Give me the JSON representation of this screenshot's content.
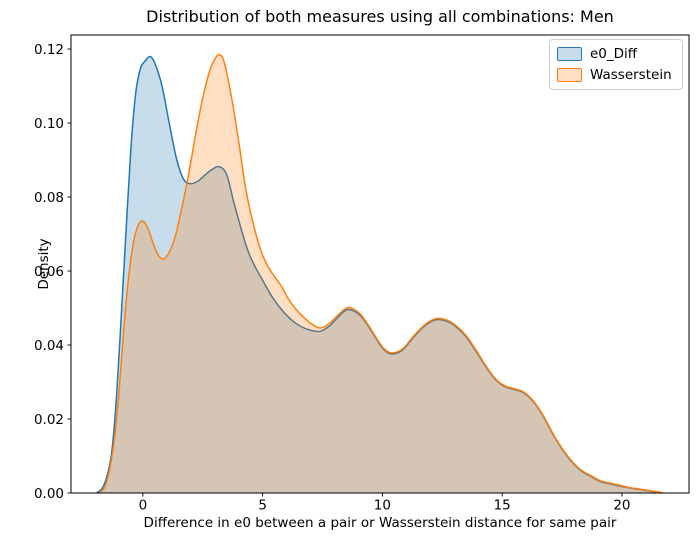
{
  "figure": {
    "title": "Distribution of both measures using all combinations: Men",
    "xlabel": "Difference in e0 between a pair or Wasserstein distance for same pair",
    "ylabel": "Density"
  },
  "legend": {
    "position": "upper right",
    "items": [
      {
        "label": "e0_Diff",
        "line_color": "#1f77b4",
        "fill_color": "rgba(31,119,180,0.25)"
      },
      {
        "label": "Wasserstein",
        "line_color": "#ff7f0e",
        "fill_color": "rgba(255,127,14,0.25)"
      }
    ]
  },
  "chart_data": {
    "type": "area",
    "subtype": "kde-density",
    "title": "Distribution of both measures using all combinations: Men",
    "xlabel": "Difference in e0 between a pair or Wasserstein distance for same pair",
    "ylabel": "Density",
    "xlim": [
      -3.0,
      22.8
    ],
    "ylim": [
      0,
      0.1238
    ],
    "grid": false,
    "legend_position": "upper right",
    "xticks": [
      0,
      5,
      10,
      15,
      20
    ],
    "xtick_labels": [
      "0",
      "5",
      "10",
      "15",
      "20"
    ],
    "yticks": [
      0,
      0.02,
      0.04,
      0.06,
      0.08,
      0.1,
      0.12
    ],
    "ytick_labels": [
      "0.00",
      "0.02",
      "0.04",
      "0.06",
      "0.08",
      "0.10",
      "0.12"
    ],
    "series": [
      {
        "name": "e0_Diff",
        "color": "#1f77b4",
        "fill": "rgba(31,119,180,0.25)",
        "points": [
          [
            -1.9,
            0.0002
          ],
          [
            -1.7,
            0.0012
          ],
          [
            -1.5,
            0.0045
          ],
          [
            -1.3,
            0.011
          ],
          [
            -1.1,
            0.026
          ],
          [
            -0.9,
            0.048
          ],
          [
            -0.7,
            0.071
          ],
          [
            -0.5,
            0.093
          ],
          [
            -0.3,
            0.108
          ],
          [
            -0.1,
            0.1148
          ],
          [
            0.1,
            0.1168
          ],
          [
            0.3,
            0.118
          ],
          [
            0.5,
            0.1162
          ],
          [
            0.8,
            0.11
          ],
          [
            1.1,
            0.1
          ],
          [
            1.4,
            0.0905
          ],
          [
            1.7,
            0.0848
          ],
          [
            2.0,
            0.0836
          ],
          [
            2.3,
            0.0843
          ],
          [
            2.6,
            0.086
          ],
          [
            2.9,
            0.0875
          ],
          [
            3.2,
            0.0882
          ],
          [
            3.5,
            0.086
          ],
          [
            3.8,
            0.0785
          ],
          [
            4.1,
            0.0715
          ],
          [
            4.4,
            0.0652
          ],
          [
            4.7,
            0.061
          ],
          [
            5.0,
            0.0575
          ],
          [
            5.4,
            0.053
          ],
          [
            5.8,
            0.0495
          ],
          [
            6.2,
            0.0468
          ],
          [
            6.6,
            0.045
          ],
          [
            7.0,
            0.044
          ],
          [
            7.4,
            0.0437
          ],
          [
            7.8,
            0.0452
          ],
          [
            8.1,
            0.0472
          ],
          [
            8.5,
            0.0495
          ],
          [
            8.8,
            0.0492
          ],
          [
            9.1,
            0.0478
          ],
          [
            9.4,
            0.0452
          ],
          [
            9.7,
            0.0421
          ],
          [
            10.0,
            0.0392
          ],
          [
            10.3,
            0.0377
          ],
          [
            10.6,
            0.0378
          ],
          [
            10.9,
            0.039
          ],
          [
            11.3,
            0.0421
          ],
          [
            11.7,
            0.0448
          ],
          [
            12.0,
            0.0462
          ],
          [
            12.3,
            0.0469
          ],
          [
            12.7,
            0.0464
          ],
          [
            13.1,
            0.0448
          ],
          [
            13.5,
            0.0422
          ],
          [
            13.9,
            0.0384
          ],
          [
            14.3,
            0.0343
          ],
          [
            14.7,
            0.0308
          ],
          [
            15.1,
            0.0288
          ],
          [
            15.5,
            0.028
          ],
          [
            15.9,
            0.0271
          ],
          [
            16.3,
            0.0247
          ],
          [
            16.7,
            0.0209
          ],
          [
            17.1,
            0.0161
          ],
          [
            17.5,
            0.0119
          ],
          [
            17.9,
            0.0085
          ],
          [
            18.3,
            0.006
          ],
          [
            18.7,
            0.0045
          ],
          [
            19.1,
            0.0031
          ],
          [
            19.5,
            0.0025
          ],
          [
            19.9,
            0.0019
          ],
          [
            20.3,
            0.0014
          ],
          [
            20.7,
            0.001
          ],
          [
            21.1,
            0.0006
          ],
          [
            21.5,
            0.0002
          ],
          [
            21.6,
            0.0
          ]
        ]
      },
      {
        "name": "Wasserstein",
        "color": "#ff7f0e",
        "fill": "rgba(255,127,14,0.25)",
        "points": [
          [
            -1.8,
            0.0002
          ],
          [
            -1.6,
            0.0015
          ],
          [
            -1.4,
            0.006
          ],
          [
            -1.2,
            0.014
          ],
          [
            -1.0,
            0.027
          ],
          [
            -0.8,
            0.044
          ],
          [
            -0.6,
            0.058
          ],
          [
            -0.4,
            0.0675
          ],
          [
            -0.2,
            0.0723
          ],
          [
            0.0,
            0.0735
          ],
          [
            0.2,
            0.0717
          ],
          [
            0.4,
            0.068
          ],
          [
            0.6,
            0.0648
          ],
          [
            0.8,
            0.0633
          ],
          [
            1.0,
            0.064
          ],
          [
            1.3,
            0.0682
          ],
          [
            1.6,
            0.0762
          ],
          [
            1.9,
            0.0858
          ],
          [
            2.2,
            0.0968
          ],
          [
            2.5,
            0.1068
          ],
          [
            2.8,
            0.1143
          ],
          [
            3.0,
            0.1172
          ],
          [
            3.2,
            0.1185
          ],
          [
            3.4,
            0.1163
          ],
          [
            3.7,
            0.107
          ],
          [
            4.0,
            0.095
          ],
          [
            4.3,
            0.082
          ],
          [
            4.6,
            0.073
          ],
          [
            4.9,
            0.066
          ],
          [
            5.2,
            0.0615
          ],
          [
            5.5,
            0.0585
          ],
          [
            5.8,
            0.0557
          ],
          [
            6.1,
            0.0522
          ],
          [
            6.4,
            0.0496
          ],
          [
            6.7,
            0.0476
          ],
          [
            7.0,
            0.0459
          ],
          [
            7.4,
            0.0446
          ],
          [
            7.8,
            0.0459
          ],
          [
            8.1,
            0.0478
          ],
          [
            8.5,
            0.05
          ],
          [
            8.8,
            0.0497
          ],
          [
            9.1,
            0.0482
          ],
          [
            9.4,
            0.0455
          ],
          [
            9.7,
            0.0424
          ],
          [
            10.0,
            0.0395
          ],
          [
            10.3,
            0.038
          ],
          [
            10.6,
            0.0381
          ],
          [
            10.9,
            0.0393
          ],
          [
            11.3,
            0.0424
          ],
          [
            11.7,
            0.0451
          ],
          [
            12.0,
            0.0465
          ],
          [
            12.3,
            0.0472
          ],
          [
            12.7,
            0.0467
          ],
          [
            13.1,
            0.0451
          ],
          [
            13.5,
            0.0425
          ],
          [
            13.9,
            0.0387
          ],
          [
            14.3,
            0.0346
          ],
          [
            14.7,
            0.031
          ],
          [
            15.1,
            0.029
          ],
          [
            15.5,
            0.0282
          ],
          [
            15.9,
            0.0273
          ],
          [
            16.3,
            0.0249
          ],
          [
            16.7,
            0.0211
          ],
          [
            17.1,
            0.0163
          ],
          [
            17.5,
            0.0121
          ],
          [
            17.9,
            0.0087
          ],
          [
            18.3,
            0.0062
          ],
          [
            18.7,
            0.0047
          ],
          [
            19.1,
            0.0033
          ],
          [
            19.5,
            0.0027
          ],
          [
            19.9,
            0.0021
          ],
          [
            20.3,
            0.0015
          ],
          [
            20.7,
            0.0011
          ],
          [
            21.1,
            0.0007
          ],
          [
            21.5,
            0.0003
          ],
          [
            21.7,
            0.0
          ]
        ]
      }
    ]
  }
}
